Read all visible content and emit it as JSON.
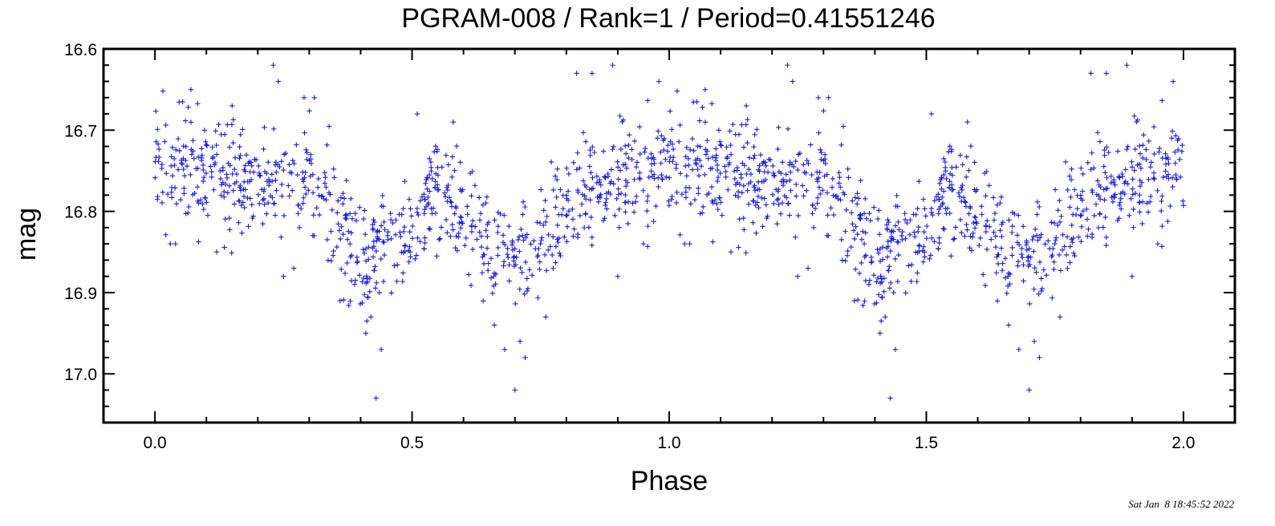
{
  "chart_data": {
    "type": "scatter",
    "title": "PGRAM-008 / Rank=1 / Period=0.41551246",
    "xlabel": "Phase",
    "ylabel": "mag",
    "xlim": [
      -0.1,
      2.1
    ],
    "ylim": [
      17.06,
      16.6
    ],
    "y_inverted": true,
    "x_ticks": [
      0.0,
      0.5,
      1.0,
      1.5,
      2.0
    ],
    "x_tick_labels": [
      "0.0",
      "0.5",
      "1.0",
      "1.5",
      "2.0"
    ],
    "y_ticks": [
      16.6,
      16.7,
      16.8,
      16.9,
      17.0
    ],
    "y_tick_labels": [
      "16.6",
      "16.7",
      "16.8",
      "16.9",
      "17.0"
    ],
    "grid": false,
    "marker": "+",
    "marker_color": "#1a1adf",
    "phase_curve": [
      [
        0.0,
        16.745
      ],
      [
        0.05,
        16.73
      ],
      [
        0.1,
        16.75
      ],
      [
        0.15,
        16.76
      ],
      [
        0.2,
        16.77
      ],
      [
        0.25,
        16.76
      ],
      [
        0.3,
        16.75
      ],
      [
        0.35,
        16.8
      ],
      [
        0.4,
        16.87
      ],
      [
        0.45,
        16.84
      ],
      [
        0.5,
        16.82
      ],
      [
        0.55,
        16.77
      ],
      [
        0.6,
        16.8
      ],
      [
        0.65,
        16.84
      ],
      [
        0.7,
        16.86
      ],
      [
        0.75,
        16.84
      ],
      [
        0.8,
        16.79
      ],
      [
        0.85,
        16.77
      ],
      [
        0.9,
        16.76
      ],
      [
        0.95,
        16.75
      ],
      [
        1.0,
        16.745
      ]
    ],
    "points_per_cycle": 850,
    "series": [
      {
        "values": [
          [
            0.23,
            16.62
          ],
          [
            0.24,
            16.64
          ],
          [
            0.43,
            17.03
          ],
          [
            0.7,
            17.02
          ],
          [
            0.89,
            16.62
          ],
          [
            0.85,
            16.63
          ],
          [
            0.82,
            16.63
          ],
          [
            0.36,
            16.91
          ],
          [
            0.42,
            16.93
          ],
          [
            0.41,
            16.95
          ],
          [
            0.44,
            16.97
          ],
          [
            0.72,
            16.98
          ],
          [
            0.66,
            16.94
          ],
          [
            0.68,
            16.97
          ],
          [
            0.71,
            16.96
          ],
          [
            0.76,
            16.93
          ],
          [
            0.25,
            16.88
          ],
          [
            0.27,
            16.87
          ],
          [
            0.03,
            16.84
          ],
          [
            0.12,
            16.85
          ],
          [
            0.98,
            16.64
          ],
          [
            0.51,
            16.68
          ],
          [
            0.58,
            16.69
          ],
          [
            0.07,
            16.65
          ],
          [
            0.15,
            16.67
          ],
          [
            0.29,
            16.66
          ],
          [
            0.31,
            16.66
          ],
          [
            0.9,
            16.88
          ],
          [
            0.95,
            16.84
          ],
          [
            1.04,
            16.84
          ]
        ]
      }
    ]
  },
  "timestamp": "Sat Jan  8 18:45:52 2022"
}
